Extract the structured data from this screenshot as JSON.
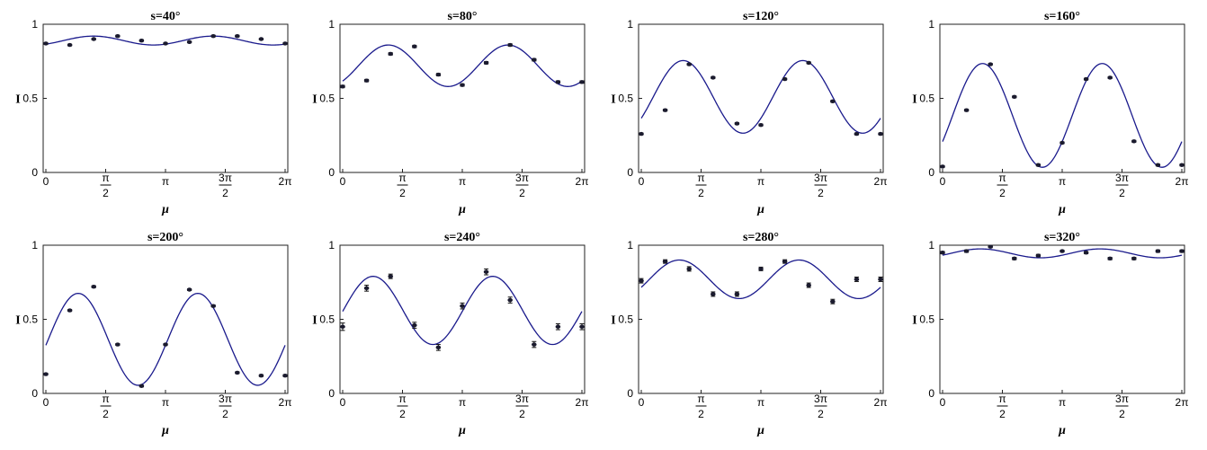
{
  "colors": {
    "curve": "#1a1a8c",
    "points": "#1b1b2e",
    "frame": "#222222"
  },
  "chart_data": [
    {
      "type": "scatter",
      "title": "s=40°",
      "xlabel": "μ",
      "ylabel": "I",
      "xlim": [
        0,
        6.2832
      ],
      "ylim": [
        0,
        1
      ],
      "x_ticks": [
        "0",
        "π/2",
        "π",
        "3π/2",
        "2π"
      ],
      "y_ticks": [
        "0",
        "0.5",
        "1"
      ],
      "points": {
        "x": [
          0,
          0.628,
          1.257,
          1.885,
          2.513,
          3.142,
          3.77,
          4.398,
          5.027,
          5.655,
          6.283
        ],
        "y": [
          0.87,
          0.86,
          0.9,
          0.92,
          0.89,
          0.87,
          0.88,
          0.92,
          0.92,
          0.9,
          0.87
        ],
        "err": [
          0.005,
          0.005,
          0.005,
          0.005,
          0.005,
          0.005,
          0.005,
          0.005,
          0.005,
          0.005,
          0.005
        ]
      },
      "fit": {
        "mean": 0.89,
        "amp": 0.03,
        "phase": 1.25,
        "harmonic": 2
      }
    },
    {
      "type": "scatter",
      "title": "s=80°",
      "xlabel": "μ",
      "ylabel": "I",
      "xlim": [
        0,
        6.2832
      ],
      "ylim": [
        0,
        1
      ],
      "x_ticks": [
        "0",
        "π/2",
        "π",
        "3π/2",
        "2π"
      ],
      "y_ticks": [
        "0",
        "0.5",
        "1"
      ],
      "points": {
        "x": [
          0,
          0.628,
          1.257,
          1.885,
          2.513,
          3.142,
          3.77,
          4.398,
          5.027,
          5.655,
          6.283
        ],
        "y": [
          0.58,
          0.62,
          0.8,
          0.85,
          0.66,
          0.59,
          0.74,
          0.86,
          0.76,
          0.61,
          0.61
        ],
        "err": [
          0.008,
          0.008,
          0.008,
          0.008,
          0.008,
          0.008,
          0.008,
          0.008,
          0.008,
          0.008,
          0.008
        ]
      },
      "fit": {
        "mean": 0.72,
        "amp": 0.14,
        "phase": 1.2,
        "harmonic": 2
      }
    },
    {
      "type": "scatter",
      "title": "s=120°",
      "xlabel": "μ",
      "ylabel": "I",
      "xlim": [
        0,
        6.2832
      ],
      "ylim": [
        0,
        1
      ],
      "x_ticks": [
        "0",
        "π/2",
        "π",
        "3π/2",
        "2π"
      ],
      "y_ticks": [
        "0",
        "0.5",
        "1"
      ],
      "points": {
        "x": [
          0,
          0.628,
          1.257,
          1.885,
          2.513,
          3.142,
          3.77,
          4.398,
          5.027,
          5.655,
          6.283
        ],
        "y": [
          0.26,
          0.42,
          0.73,
          0.64,
          0.33,
          0.32,
          0.63,
          0.74,
          0.48,
          0.26,
          0.26
        ],
        "err": [
          0.006,
          0.006,
          0.006,
          0.006,
          0.006,
          0.006,
          0.006,
          0.006,
          0.006,
          0.006,
          0.006
        ]
      },
      "fit": {
        "mean": 0.51,
        "amp": 0.245,
        "phase": 1.1,
        "harmonic": 2
      }
    },
    {
      "type": "scatter",
      "title": "s=160°",
      "xlabel": "μ",
      "ylabel": "I",
      "xlim": [
        0,
        6.2832
      ],
      "ylim": [
        0,
        1
      ],
      "x_ticks": [
        "0",
        "π/2",
        "π",
        "3π/2",
        "2π"
      ],
      "y_ticks": [
        "0",
        "0.5",
        "1"
      ],
      "points": {
        "x": [
          0,
          0.628,
          1.257,
          1.885,
          2.513,
          3.142,
          3.77,
          4.398,
          5.027,
          5.655,
          6.283
        ],
        "y": [
          0.04,
          0.42,
          0.73,
          0.51,
          0.05,
          0.2,
          0.63,
          0.64,
          0.21,
          0.05,
          0.05
        ],
        "err": [
          0.006,
          0.006,
          0.006,
          0.006,
          0.006,
          0.006,
          0.006,
          0.006,
          0.006,
          0.006,
          0.006
        ]
      },
      "fit": {
        "mean": 0.385,
        "amp": 0.35,
        "phase": 1.05,
        "harmonic": 2
      }
    },
    {
      "type": "scatter",
      "title": "s=200°",
      "xlabel": "μ",
      "ylabel": "I",
      "xlim": [
        0,
        6.2832
      ],
      "ylim": [
        0,
        1
      ],
      "x_ticks": [
        "0",
        "π/2",
        "π",
        "3π/2",
        "2π"
      ],
      "y_ticks": [
        "0",
        "0.5",
        "1"
      ],
      "points": {
        "x": [
          0,
          0.628,
          1.257,
          1.885,
          2.513,
          3.142,
          3.77,
          4.398,
          5.027,
          5.655,
          6.283
        ],
        "y": [
          0.13,
          0.56,
          0.72,
          0.33,
          0.05,
          0.33,
          0.7,
          0.59,
          0.14,
          0.12,
          0.12
        ],
        "err": [
          0.006,
          0.006,
          0.006,
          0.006,
          0.006,
          0.006,
          0.006,
          0.006,
          0.006,
          0.006,
          0.006
        ]
      },
      "fit": {
        "mean": 0.365,
        "amp": 0.31,
        "phase": 0.85,
        "harmonic": 2
      }
    },
    {
      "type": "scatter",
      "title": "s=240°",
      "xlabel": "μ",
      "ylabel": "I",
      "xlim": [
        0,
        6.2832
      ],
      "ylim": [
        0,
        1
      ],
      "x_ticks": [
        "0",
        "π/2",
        "π",
        "3π/2",
        "2π"
      ],
      "y_ticks": [
        "0",
        "0.5",
        "1"
      ],
      "points": {
        "x": [
          0,
          0.628,
          1.257,
          1.885,
          2.513,
          3.142,
          3.77,
          4.398,
          5.027,
          5.655,
          6.283
        ],
        "y": [
          0.45,
          0.71,
          0.79,
          0.46,
          0.31,
          0.59,
          0.82,
          0.63,
          0.33,
          0.45,
          0.45
        ],
        "err": [
          0.025,
          0.02,
          0.015,
          0.02,
          0.02,
          0.02,
          0.02,
          0.02,
          0.02,
          0.02,
          0.02
        ]
      },
      "fit": {
        "mean": 0.56,
        "amp": 0.23,
        "phase": 0.8,
        "harmonic": 2
      }
    },
    {
      "type": "scatter",
      "title": "s=280°",
      "xlabel": "μ",
      "ylabel": "I",
      "xlim": [
        0,
        6.2832
      ],
      "ylim": [
        0,
        1
      ],
      "x_ticks": [
        "0",
        "π/2",
        "π",
        "3π/2",
        "2π"
      ],
      "y_ticks": [
        "0",
        "0.5",
        "1"
      ],
      "points": {
        "x": [
          0,
          0.628,
          1.257,
          1.885,
          2.513,
          3.142,
          3.77,
          4.398,
          5.027,
          5.655,
          6.283
        ],
        "y": [
          0.76,
          0.89,
          0.84,
          0.67,
          0.67,
          0.84,
          0.89,
          0.73,
          0.62,
          0.77,
          0.77
        ],
        "err": [
          0.015,
          0.012,
          0.015,
          0.015,
          0.015,
          0.012,
          0.012,
          0.015,
          0.015,
          0.015,
          0.015
        ]
      },
      "fit": {
        "mean": 0.77,
        "amp": 0.13,
        "phase": 1.0,
        "harmonic": 2
      }
    },
    {
      "type": "scatter",
      "title": "s=320°",
      "xlabel": "μ",
      "ylabel": "I",
      "xlim": [
        0,
        6.2832
      ],
      "ylim": [
        0,
        1
      ],
      "x_ticks": [
        "0",
        "π/2",
        "π",
        "3π/2",
        "2π"
      ],
      "y_ticks": [
        "0",
        "0.5",
        "1"
      ],
      "points": {
        "x": [
          0,
          0.628,
          1.257,
          1.885,
          2.513,
          3.142,
          3.77,
          4.398,
          5.027,
          5.655,
          6.283
        ],
        "y": [
          0.95,
          0.96,
          0.99,
          0.91,
          0.93,
          0.96,
          0.95,
          0.91,
          0.91,
          0.96,
          0.96
        ],
        "err": [
          0.008,
          0.008,
          0.006,
          0.008,
          0.008,
          0.006,
          0.008,
          0.008,
          0.008,
          0.008,
          0.008
        ]
      },
      "fit": {
        "mean": 0.945,
        "amp": 0.03,
        "phase": 1.0,
        "harmonic": 2
      }
    }
  ]
}
